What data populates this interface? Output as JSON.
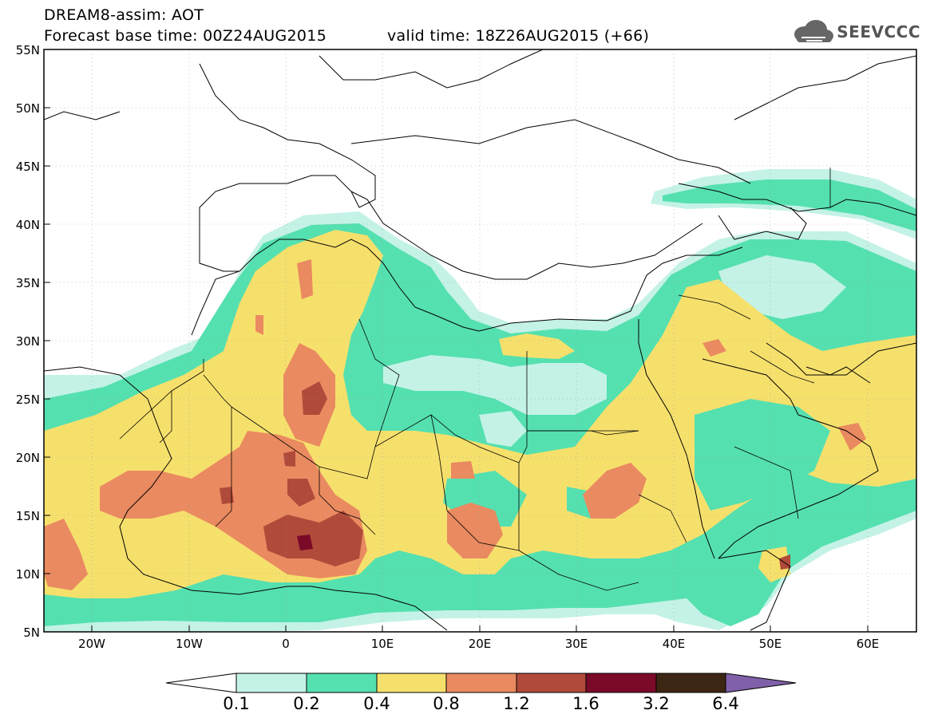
{
  "header": {
    "line1": "DREAM8-assim: AOT",
    "line2": "Forecast base time: 00Z24AUG2015",
    "line3": "valid time: 18Z26AUG2015 (+66)"
  },
  "logo": {
    "text": "SEEVCCC",
    "icon": "cloud-icon"
  },
  "map": {
    "lat_labels": [
      "55N",
      "50N",
      "45N",
      "40N",
      "35N",
      "30N",
      "25N",
      "20N",
      "15N",
      "10N",
      "5N"
    ],
    "lon_labels": [
      "20W",
      "10W",
      "0",
      "10E",
      "20E",
      "30E",
      "40E",
      "50E",
      "60E"
    ],
    "lat_range": [
      5,
      55
    ],
    "lon_range": [
      -25,
      65
    ]
  },
  "colorbar": {
    "labels": [
      "0.1",
      "0.2",
      "0.4",
      "0.8",
      "1.2",
      "1.6",
      "3.2",
      "6.4"
    ],
    "colors": [
      "#c4f2e6",
      "#55e0b0",
      "#f6e06c",
      "#ea8a60",
      "#b04a3a",
      "#7a0a28",
      "#3e2614",
      "#8060a8"
    ],
    "under_color": "#ffffff"
  }
}
